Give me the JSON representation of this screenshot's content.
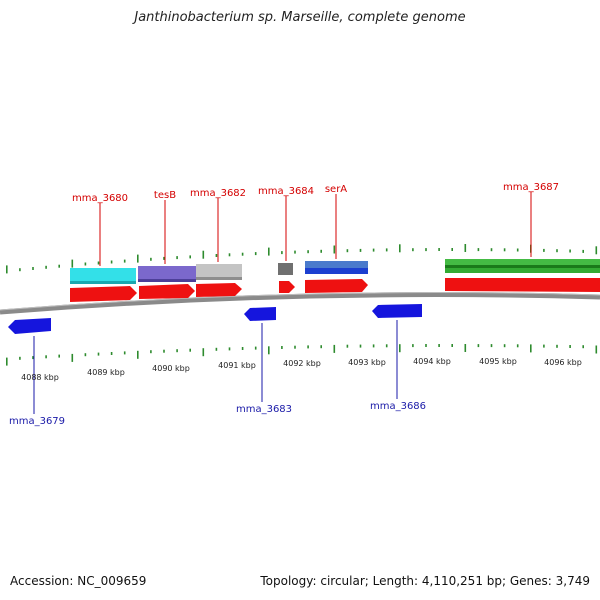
{
  "title": "Janthinobacterium sp. Marseille, complete genome",
  "footer": {
    "accession": "Accession: NC_009659",
    "summary": "Topology: circular; Length: 4,110,251 bp; Genes: 3,749"
  },
  "tick_labels": [
    "4088 kbp",
    "4089 kbp",
    "4090 kbp",
    "4091 kbp",
    "4092 kbp",
    "4093 kbp",
    "4094 kbp",
    "4095 kbp",
    "4096 kbp"
  ],
  "genes_top": [
    {
      "name": "mma_3680",
      "color": "#d40000"
    },
    {
      "name": "tesB",
      "color": "#d40000"
    },
    {
      "name": "mma_3682",
      "color": "#d40000"
    },
    {
      "name": "mma_3684",
      "color": "#d40000"
    },
    {
      "name": "serA",
      "color": "#d40000"
    },
    {
      "name": "mma_3687",
      "color": "#d40000"
    }
  ],
  "genes_bottom": [
    {
      "name": "mma_3679",
      "color": "#1a1aa8"
    },
    {
      "name": "mma_3683",
      "color": "#1a1aa8"
    },
    {
      "name": "mma_3686",
      "color": "#1a1aa8"
    }
  ],
  "colors": {
    "forward_gene": "#ee1111",
    "reverse_gene": "#1515dd",
    "tick": "#2e8b2e",
    "backbone": "#8a8a8a",
    "cog_cyan": "#33e0e8",
    "cog_purple": "#7b68cc",
    "cog_gray": "#c4c4c4",
    "cog_dark": "#707070",
    "cog_blue": "#4a7acc",
    "cog_green": "#33aa33"
  }
}
